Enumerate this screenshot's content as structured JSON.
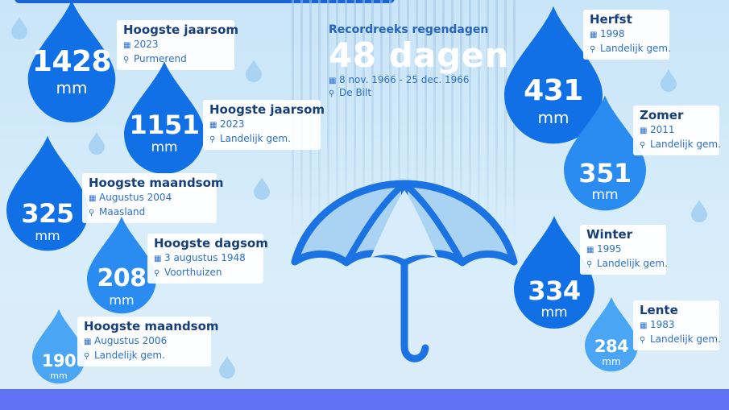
{
  "colors": {
    "drop_dark": "#1270e6",
    "drop_mid": "#2a8bf0",
    "drop_light": "#4aa6f5",
    "heading": "#173f7a",
    "accent_text": "#2d6fc9",
    "bottom_bar": "#6272f6"
  },
  "unit": "mm",
  "record": {
    "title": "Recordreeks regendagen",
    "value": "48 dagen",
    "period": "8 nov. 1966 - 25 dec. 1966",
    "place": "De Bilt",
    "icons": {
      "period": "calendar-icon",
      "place": "location-pin-icon"
    }
  },
  "left_drops": [
    {
      "value": "1428",
      "title": "Hoogste jaarsom",
      "date": "2023",
      "place": "Purmerend"
    },
    {
      "value": "1151",
      "title": "Hoogste jaarsom",
      "date": "2023",
      "place": "Landelijk gem."
    },
    {
      "value": "325",
      "title": "Hoogste maandsom",
      "date": "Augustus 2004",
      "place": "Maasland"
    },
    {
      "value": "208",
      "title": "Hoogste dagsom",
      "date": "3 augustus 1948",
      "place": "Voorthuizen"
    },
    {
      "value": "190",
      "title": "Hoogste maandsom",
      "date": "Augustus 2006",
      "place": "Landelijk gem."
    }
  ],
  "season_drops": [
    {
      "value": "431",
      "title": "Herfst",
      "date": "1998",
      "place": "Landelijk gem."
    },
    {
      "value": "351",
      "title": "Zomer",
      "date": "2011",
      "place": "Landelijk gem."
    },
    {
      "value": "334",
      "title": "Winter",
      "date": "1995",
      "place": "Landelijk gem."
    },
    {
      "value": "284",
      "title": "Lente",
      "date": "1983",
      "place": "Landelijk gem."
    }
  ]
}
